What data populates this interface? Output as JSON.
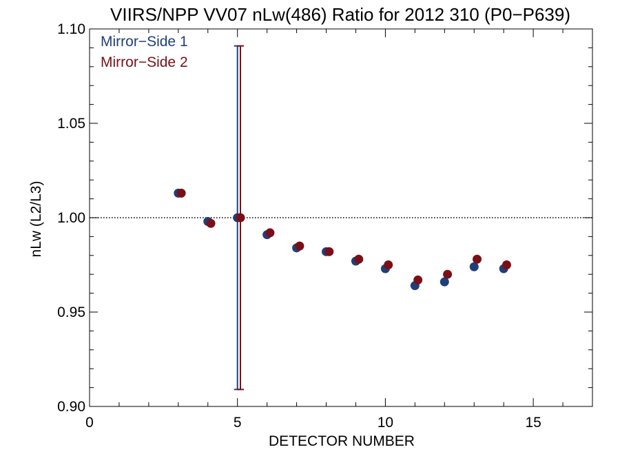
{
  "chart_data": {
    "type": "scatter",
    "title": "VIIRS/NPP VV07 nLw(486) Ratio for 2012 310 (P0−P639)",
    "xlabel": "DETECTOR NUMBER",
    "ylabel": "nLw (L2/L3)",
    "xlim": [
      0,
      17
    ],
    "ylim": [
      0.9,
      1.1
    ],
    "x_ticks": [
      0,
      5,
      10,
      15
    ],
    "x_tick_labels": [
      "0",
      "5",
      "10",
      "15"
    ],
    "y_ticks": [
      0.9,
      0.95,
      1.0,
      1.05,
      1.1
    ],
    "y_tick_labels": [
      "0.90",
      "0.95",
      "1.00",
      "1.05",
      "1.10"
    ],
    "reference_line": 1.0,
    "grid": false,
    "legend_position": "top-left",
    "series": [
      {
        "name": "Mirror−Side 1",
        "color": "#1f3f7a",
        "x": [
          3,
          4,
          5,
          6,
          7,
          8,
          9,
          10,
          11,
          12,
          13,
          14
        ],
        "values": [
          1.013,
          0.998,
          1.0,
          0.991,
          0.984,
          0.982,
          0.977,
          0.973,
          0.964,
          0.966,
          0.974,
          0.973
        ],
        "error_bars": [
          null,
          null,
          [
            0.909,
            1.091
          ],
          null,
          null,
          null,
          null,
          null,
          null,
          null,
          null,
          null
        ]
      },
      {
        "name": "Mirror−Side 2",
        "color": "#7a0f17",
        "x": [
          3.1,
          4.1,
          5.1,
          6.1,
          7.1,
          8.1,
          9.1,
          10.1,
          11.1,
          12.1,
          13.1,
          14.1
        ],
        "values": [
          1.013,
          0.997,
          1.0,
          0.992,
          0.985,
          0.982,
          0.978,
          0.975,
          0.967,
          0.97,
          0.978,
          0.975
        ],
        "error_bars": [
          null,
          null,
          [
            0.909,
            1.091
          ],
          null,
          null,
          null,
          null,
          null,
          null,
          null,
          null,
          null
        ]
      }
    ]
  }
}
